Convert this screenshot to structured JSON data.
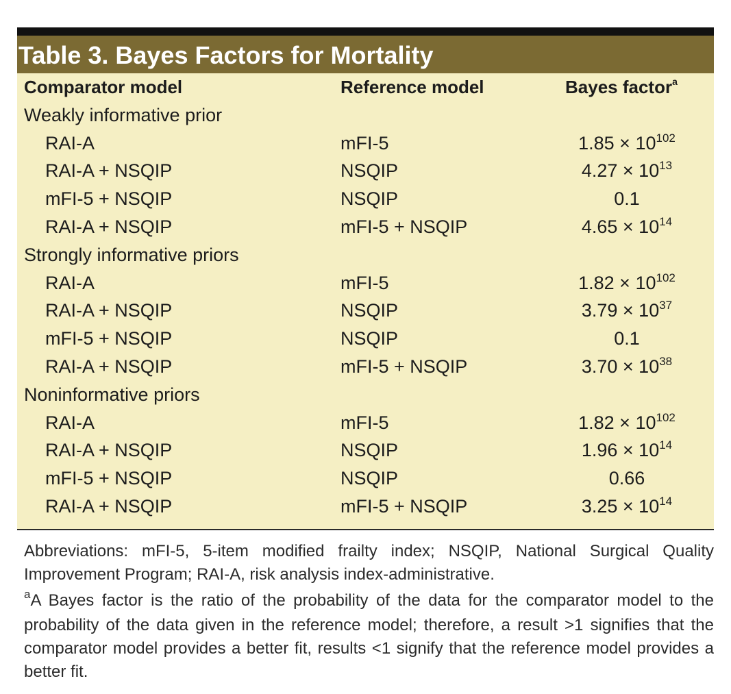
{
  "title": "Table 3. Bayes Factors for Mortality",
  "headers": {
    "comparator": "Comparator model",
    "reference": "Reference model",
    "bayes": "Bayes factor",
    "bayes_sup": "a"
  },
  "sections": [
    {
      "label": "Weakly informative prior",
      "rows": [
        {
          "comparator": "RAI-A",
          "reference": "mFI-5",
          "mantissa": "1.85 × 10",
          "exp": "102"
        },
        {
          "comparator": "RAI-A + NSQIP",
          "reference": "NSQIP",
          "mantissa": "4.27 × 10",
          "exp": "13"
        },
        {
          "comparator": "mFI-5 + NSQIP",
          "reference": "NSQIP",
          "mantissa": "0.1",
          "exp": ""
        },
        {
          "comparator": "RAI-A + NSQIP",
          "reference": "mFI-5 + NSQIP",
          "mantissa": "4.65 × 10",
          "exp": "14"
        }
      ]
    },
    {
      "label": "Strongly informative priors",
      "rows": [
        {
          "comparator": "RAI-A",
          "reference": "mFI-5",
          "mantissa": "1.82 × 10",
          "exp": "102"
        },
        {
          "comparator": "RAI-A + NSQIP",
          "reference": "NSQIP",
          "mantissa": "3.79 × 10",
          "exp": "37"
        },
        {
          "comparator": "mFI-5 + NSQIP",
          "reference": "NSQIP",
          "mantissa": "0.1",
          "exp": ""
        },
        {
          "comparator": "RAI-A + NSQIP",
          "reference": "mFI-5 + NSQIP",
          "mantissa": "3.70 × 10",
          "exp": "38"
        }
      ]
    },
    {
      "label": "Noninformative priors",
      "rows": [
        {
          "comparator": "RAI-A",
          "reference": "mFI-5",
          "mantissa": "1.82 × 10",
          "exp": "102"
        },
        {
          "comparator": "RAI-A + NSQIP",
          "reference": "NSQIP",
          "mantissa": "1.96 × 10",
          "exp": "14"
        },
        {
          "comparator": "mFI-5 + NSQIP",
          "reference": "NSQIP",
          "mantissa": "0.66",
          "exp": ""
        },
        {
          "comparator": "RAI-A + NSQIP",
          "reference": "mFI-5 + NSQIP",
          "mantissa": "3.25 × 10",
          "exp": "14"
        }
      ]
    }
  ],
  "footnotes": {
    "abbreviations": "Abbreviations: mFI-5, 5-item modified frailty index; NSQIP, National Surgical Quality Improvement Program; RAI-A, risk analysis index-administrative.",
    "note_marker": "a",
    "note": "A Bayes factor is the ratio of the probability of the data for the comparator model to the probability of the data given in the reference model; therefore, a result >1 signifies that the comparator model provides a better fit, results <1 signify that the reference model provides a better fit."
  },
  "colors": {
    "title_bar": "#7b6a33",
    "table_background": "#f5efc4",
    "top_rule": "#111111"
  }
}
